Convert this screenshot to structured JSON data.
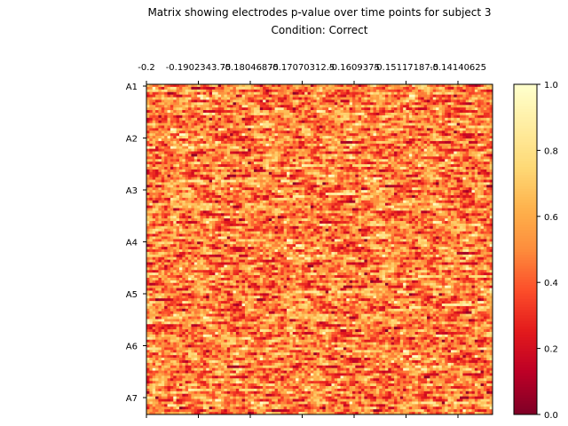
{
  "chart_data": {
    "type": "heatmap",
    "title": "Matrix showing electrodes p-value over time points for subject 3",
    "subtitle": "Condition: Correct",
    "x_tick_labels": [
      "-0.2",
      "-0.19023437",
      "-0.18046875",
      "-0.17070312",
      "-0.1609375",
      "-0.15117187",
      "-0.14140625"
    ],
    "x_tick_labels_displayed": [
      "-0.2",
      "-0.1902343.75",
      "-0.18046875",
      "-0.17070312.5",
      "-0.1609375",
      "-0.15117187.5",
      "-0.14140625"
    ],
    "y_tick_labels": [
      "A1",
      "A2",
      "A3",
      "A4",
      "A5",
      "A6",
      "A7"
    ],
    "colorbar": {
      "colormap": "YlOrRd_r",
      "range": [
        0.0,
        1.0
      ],
      "tick_labels": [
        "0.0",
        "0.2",
        "0.4",
        "0.6",
        "0.8",
        "1.0"
      ],
      "tick_values": [
        0.0,
        0.2,
        0.4,
        0.6,
        0.8,
        1.0
      ]
    },
    "matrix_rows": 128,
    "matrix_cols": 116,
    "value_range": [
      0.0,
      1.0
    ],
    "grid": false
  }
}
